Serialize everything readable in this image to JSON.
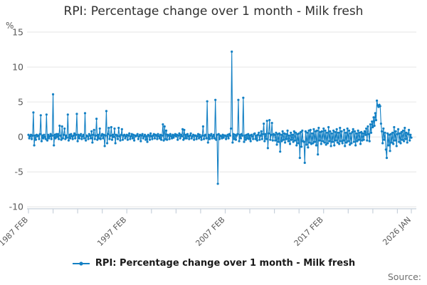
{
  "title": "RPI: Percentage change over 1 month - Milk fresh",
  "source": "Source:",
  "legend": {
    "items": [
      {
        "label": "RPI: Percentage change over 1 month - Milk fresh",
        "color": "#1380c4"
      }
    ]
  },
  "y_axis": {
    "unit": "%",
    "tick_labels": [
      "15",
      "10",
      "5",
      "0",
      "-5",
      "-10"
    ],
    "tick_values": [
      15,
      10,
      5,
      0,
      -5,
      -10
    ]
  },
  "x_axis": {
    "major_labels": [
      {
        "label": "1987 FEB",
        "index": 0
      },
      {
        "label": "1997 FEB",
        "index": 120
      },
      {
        "label": "2007 FEB",
        "index": 240
      },
      {
        "label": "2017 FEB",
        "index": 360
      },
      {
        "label": "2026 JAN",
        "index": 467
      }
    ],
    "minor_tick_interval": 30
  },
  "colors": {
    "line": "#1380c4",
    "grid": "#e6e6e6",
    "axis": "#c7d0da",
    "tick_text": "#595959",
    "title_text": "#2f2f2f",
    "legend_text": "#1a1a1a",
    "source_text": "#6e6e6e"
  },
  "chart_data": {
    "type": "line",
    "title": "RPI: Percentage change over 1 month - Milk fresh",
    "ylabel": "%",
    "ylim": [
      -10,
      15
    ],
    "grid": "horizontal",
    "legend_position": "bottom",
    "frequency": "monthly",
    "x_start": "1987 FEB",
    "x_end": "2026 JAN",
    "x_tick_labels": [
      "1987 FEB",
      "1997 FEB",
      "2007 FEB",
      "2017 FEB",
      "2026 JAN"
    ],
    "series": [
      {
        "name": "RPI: Percentage change over 1 month - Milk fresh",
        "color": "#1380c4",
        "marker": "dot",
        "values": [
          0.3,
          -0.2,
          0.1,
          0.3,
          -0.3,
          0.2,
          3.5,
          -1.2,
          0.2,
          -0.4,
          0.3,
          0.1,
          0.2,
          -0.3,
          0.4,
          3.1,
          -0.6,
          0.2,
          -0.2,
          0.3,
          0.0,
          -0.3,
          3.2,
          -0.5,
          0.3,
          -0.2,
          0.1,
          0.4,
          -0.3,
          0.2,
          6.1,
          -1.2,
          0.3,
          -0.2,
          0.4,
          0.0,
          0.4,
          -0.3,
          1.6,
          0.2,
          -0.4,
          1.5,
          -0.2,
          0.3,
          1.2,
          -0.3,
          0.2,
          -0.1,
          3.2,
          -0.5,
          0.3,
          -0.2,
          0.4,
          0.1,
          -0.3,
          0.2,
          0.5,
          -0.2,
          0.3,
          3.3,
          -0.6,
          0.3,
          -0.2,
          0.2,
          0.4,
          -0.3,
          0.1,
          0.3,
          -0.2,
          3.4,
          -0.5,
          0.2,
          0.1,
          -0.3,
          0.4,
          0.2,
          -0.2,
          0.8,
          -0.8,
          0.3,
          1.0,
          -0.3,
          0.2,
          2.6,
          -0.4,
          0.3,
          -0.2,
          1.2,
          -0.3,
          0.2,
          0.4,
          -0.2,
          0.3,
          -1.3,
          0.2,
          3.7,
          -0.9,
          0.4,
          1.3,
          -0.3,
          0.2,
          1.4,
          -0.4,
          0.3,
          0.0,
          1.2,
          -0.9,
          0.3,
          0.2,
          -0.3,
          1.3,
          0.1,
          -0.5,
          0.3,
          1.1,
          -0.4,
          0.2,
          0.3,
          -0.2,
          0.1,
          0.3,
          -0.4,
          0.2,
          0.5,
          -0.3,
          0.1,
          0.4,
          -0.2,
          0.3,
          -0.5,
          0.2,
          0.1,
          0.2,
          0.4,
          -0.3,
          0.1,
          0.3,
          -0.6,
          0.2,
          0.4,
          -0.2,
          0.1,
          0.3,
          -0.4,
          0.1,
          -0.7,
          0.3,
          0.2,
          -0.4,
          0.5,
          0.1,
          -0.3,
          0.2,
          0.4,
          -0.2,
          0.3,
          0.2,
          -0.3,
          0.4,
          0.1,
          -0.2,
          0.3,
          -0.4,
          0.2,
          1.8,
          -0.5,
          1.5,
          -0.3,
          0.9,
          -0.4,
          0.3,
          0.2,
          -0.3,
          0.4,
          0.1,
          -0.2,
          0.3,
          -0.1,
          0.2,
          0.4,
          0.1,
          0.3,
          -0.4,
          0.2,
          0.5,
          -0.2,
          0.3,
          0.1,
          1.1,
          -0.4,
          1.0,
          -0.2,
          0.3,
          -0.2,
          0.4,
          0.1,
          -0.3,
          0.2,
          0.5,
          -0.2,
          0.1,
          0.3,
          -0.4,
          0.2,
          0.2,
          -0.3,
          0.1,
          0.4,
          -0.2,
          0.3,
          0.0,
          -0.4,
          0.2,
          1.5,
          -0.3,
          0.2,
          0.3,
          -0.2,
          5.1,
          -0.8,
          0.3,
          -0.3,
          0.2,
          0.4,
          -0.2,
          0.1,
          0.3,
          -0.2,
          5.3,
          -0.4,
          0.3,
          -6.7,
          0.4,
          -0.3,
          0.2,
          0.1,
          -0.2,
          0.3,
          -0.1,
          0.2,
          0.2,
          -0.3,
          0.1,
          0.3,
          -0.2,
          0.4,
          0.2,
          1.2,
          12.2,
          -0.8,
          0.4,
          -0.3,
          0.3,
          -0.4,
          0.2,
          0.4,
          5.3,
          -0.6,
          0.3,
          -0.2,
          0.4,
          0.2,
          5.6,
          -0.7,
          0.2,
          -0.4,
          0.3,
          -0.2,
          0.4,
          -0.3,
          0.2,
          -0.6,
          0.3,
          0.1,
          -0.3,
          0.4,
          0.5,
          -0.3,
          0.2,
          -0.5,
          0.3,
          0.6,
          -0.4,
          0.2,
          0.8,
          -0.3,
          0.4,
          1.9,
          -0.6,
          0.4,
          -0.3,
          2.3,
          -1.6,
          0.5,
          2.4,
          -0.4,
          0.3,
          2.0,
          -0.5,
          0.4,
          0.3,
          -0.5,
          0.6,
          -1.1,
          0.4,
          -0.7,
          0.5,
          -2.1,
          0.3,
          -0.6,
          0.8,
          -0.4,
          0.5,
          -0.8,
          0.4,
          -0.3,
          0.9,
          -0.6,
          0.2,
          -1.0,
          0.6,
          -0.4,
          0.3,
          -0.7,
          0.8,
          -0.5,
          0.6,
          -1.2,
          0.4,
          -0.9,
          0.5,
          -3.0,
          0.7,
          -1.4,
          0.9,
          -0.6,
          -0.7,
          -3.7,
          0.8,
          -1.1,
          0.6,
          -1.5,
          0.9,
          -0.8,
          1.0,
          -1.0,
          0.5,
          -0.9,
          1.1,
          -0.7,
          0.8,
          -1.2,
          0.9,
          -2.5,
          1.3,
          -0.5,
          0.7,
          -1.0,
          0.8,
          -0.6,
          1.2,
          -0.8,
          0.9,
          -1.1,
          0.6,
          -0.9,
          1.4,
          -0.6,
          0.8,
          -1.3,
          0.5,
          -0.7,
          0.9,
          -1.2,
          0.7,
          -0.5,
          1.1,
          -0.8,
          0.6,
          -1.0,
          1.3,
          -0.6,
          0.8,
          -0.9,
          -0.5,
          1.0,
          -1.3,
          0.6,
          -0.8,
          1.2,
          -0.6,
          0.9,
          -1.1,
          0.5,
          -0.9,
          0.7,
          1.1,
          -0.7,
          0.8,
          -1.2,
          0.5,
          -0.6,
          0.9,
          -0.4,
          0.6,
          -1.0,
          0.7,
          -0.5,
          0.5,
          -0.4,
          0.8,
          0.3,
          1.2,
          -0.5,
          1.5,
          0.4,
          -0.6,
          1.8,
          0.6,
          2.2,
          1.4,
          2.8,
          1.6,
          3.4,
          2.4,
          5.2,
          4.5,
          4.3,
          4.6,
          4.4,
          1.9,
          0.8,
          -0.9,
          1.2,
          -0.4,
          0.6,
          -1.8,
          -3.0,
          0.5,
          -1.2,
          0.3,
          -2.0,
          0.4,
          -0.8,
          0.6,
          -1.0,
          1.4,
          -0.5,
          0.8,
          -1.3,
          0.4,
          1.1,
          -0.7,
          0.5,
          -0.9,
          0.7,
          -0.4,
          0.9,
          -0.6,
          1.3,
          -0.3,
          0.6,
          -0.8,
          0.4,
          1.0,
          -0.5,
          0.3,
          -0.1
        ]
      }
    ]
  }
}
